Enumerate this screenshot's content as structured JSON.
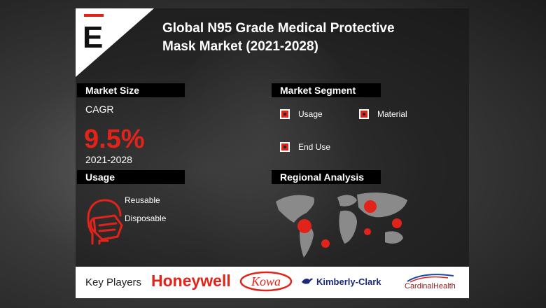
{
  "header": {
    "logo_letter": "E",
    "title_line1": "Global N95 Grade Medical Protective",
    "title_line2": "Mask Market (2021-2028)"
  },
  "market_size": {
    "heading": "Market Size",
    "cagr_label": "CAGR",
    "cagr_value": "9.5%",
    "years": "2021-2028"
  },
  "market_segment": {
    "heading": "Market Segment",
    "items": [
      "Usage",
      "Material",
      "End Use"
    ]
  },
  "usage": {
    "heading": "Usage",
    "items": [
      "Reusable",
      "Disposable"
    ],
    "icon": "face-mask-icon"
  },
  "regional": {
    "heading": "Regional Analysis",
    "icon": "world-map-icon"
  },
  "key_players": {
    "label": "Key Players",
    "players": [
      "Honeywell",
      "Kowa",
      "Kimberly-Clark",
      "CardinalHealth"
    ]
  },
  "colors": {
    "accent_red": "#e2231a",
    "label_bar": "#000000",
    "white": "#ffffff"
  }
}
